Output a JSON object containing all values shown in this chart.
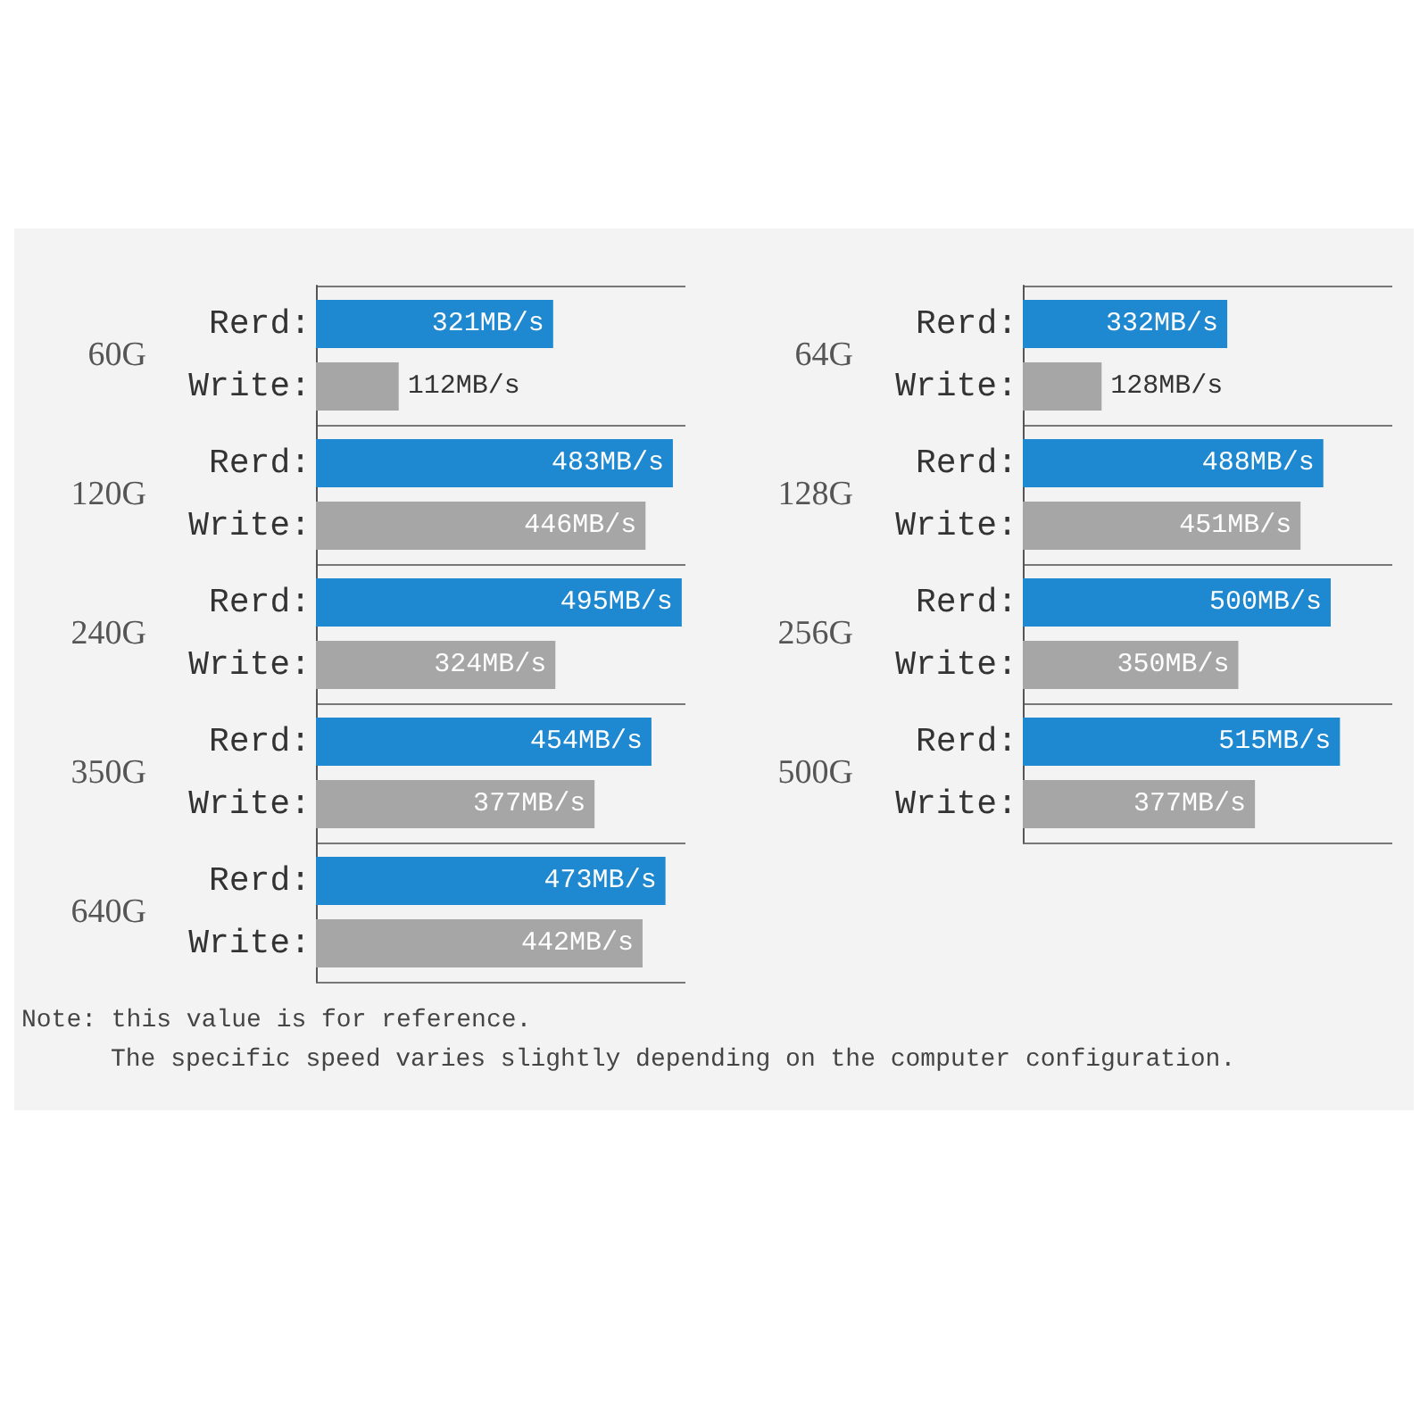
{
  "chart_data": [
    {
      "type": "bar",
      "orientation": "horizontal",
      "grid": true,
      "categories": [
        "60G",
        "120G",
        "240G",
        "350G",
        "640G"
      ],
      "series": [
        {
          "name": "Rerd:",
          "color": "#1e88d0",
          "values": [
            321,
            483,
            495,
            454,
            473
          ],
          "value_labels": [
            "321MB/s",
            "483MB/s",
            "495MB/s",
            "454MB/s",
            "473MB/s"
          ]
        },
        {
          "name": "Write:",
          "color": "#a6a6a6",
          "values": [
            112,
            446,
            324,
            377,
            442
          ],
          "value_labels": [
            "112MB/s",
            "446MB/s",
            "324MB/s",
            "377MB/s",
            "442MB/s"
          ]
        }
      ],
      "annotations": [
        "Note: this value is for reference.",
        "The specific speed varies slightly depending on the computer configuration."
      ]
    },
    {
      "type": "bar",
      "orientation": "horizontal",
      "grid": true,
      "categories": [
        "64G",
        "128G",
        "256G",
        "500G"
      ],
      "series": [
        {
          "name": "Rerd:",
          "color": "#1e88d0",
          "values": [
            332,
            488,
            500,
            515
          ],
          "value_labels": [
            "332MB/s",
            "488MB/s",
            "500MB/s",
            "515MB/s"
          ]
        },
        {
          "name": "Write:",
          "color": "#a6a6a6",
          "values": [
            128,
            451,
            350,
            377
          ],
          "value_labels": [
            "128MB/s",
            "451MB/s",
            "350MB/s",
            "377MB/s"
          ]
        }
      ]
    }
  ]
}
